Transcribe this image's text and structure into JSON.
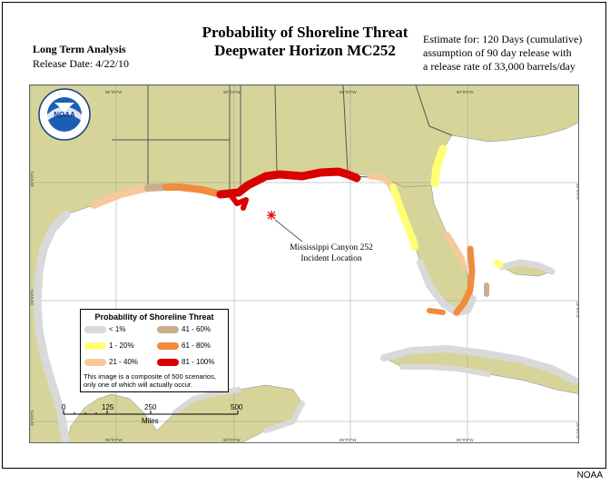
{
  "title": {
    "line1": "Probability of Shoreline Threat",
    "line2": "Deepwater Horizon MC252"
  },
  "analysis": {
    "type": "Long Term Analysis",
    "release_date": "Release Date:  4/22/10"
  },
  "estimate": {
    "line1": "Estimate for: 120 Days (cumulative)",
    "line2": "assumption of 90 day release with",
    "line3": "a release rate of 33,000 barrels/day"
  },
  "incident": {
    "line1": "Mississippi Canyon 252",
    "line2": "Incident Location"
  },
  "legend": {
    "title": "Probability of Shoreline Threat",
    "items": [
      {
        "label": "< 1%",
        "color": "#d9d9d9"
      },
      {
        "label": "1 - 20%",
        "color": "#ffff73"
      },
      {
        "label": "21 - 40%",
        "color": "#f7c99a"
      },
      {
        "label": "41 - 60%",
        "color": "#c9ad8c"
      },
      {
        "label": "61 - 80%",
        "color": "#f08c3c"
      },
      {
        "label": "81 - 100%",
        "color": "#d90000"
      }
    ],
    "note_line1": "This image is a composite of 500 scenarios,",
    "note_line2": "only one of which will actually occur."
  },
  "scale": {
    "ticks": [
      "0",
      "125",
      "250",
      "500"
    ],
    "unit": "Miles"
  },
  "coords": {
    "lon": [
      "95°0'0\"W",
      "90°0'0\"W",
      "85°0'0\"W",
      "80°0'0\"W"
    ],
    "lat": [
      "30°0'0\"N",
      "25°0'0\"N",
      "20°0'0\"N"
    ]
  },
  "logo": {
    "text": "NOAA"
  },
  "credit": "NOAA",
  "colors": {
    "land": "#d7d49a",
    "water": "#ffffff",
    "border": "#555555"
  }
}
